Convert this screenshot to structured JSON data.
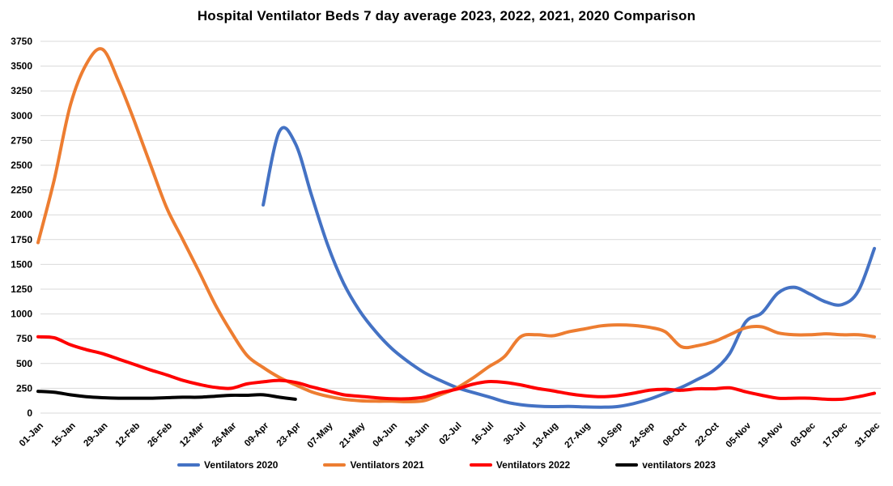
{
  "chart_data": {
    "type": "line",
    "title": "Hospital Ventilator Beds 7 day average 2023, 2022, 2021, 2020 Comparison",
    "xlabel": "",
    "ylabel": "",
    "ylim": [
      0,
      3750
    ],
    "y_ticks": [
      0,
      250,
      500,
      750,
      1000,
      1250,
      1500,
      1750,
      2000,
      2250,
      2500,
      2750,
      3000,
      3250,
      3500,
      3750
    ],
    "grid": true,
    "gridline_color": "#d9d9d9",
    "text_color": "#000000",
    "background_color": "#ffffff",
    "legend_position": "bottom",
    "x_tick_labels": [
      "01-Jan",
      "15-Jan",
      "29-Jan",
      "12-Feb",
      "26-Feb",
      "12-Mar",
      "26-Mar",
      "09-Apr",
      "23-Apr",
      "07-May",
      "21-May",
      "04-Jun",
      "18-Jun",
      "02-Jul",
      "16-Jul",
      "30-Jul",
      "13-Aug",
      "27-Aug",
      "10-Sep",
      "24-Sep",
      "08-Oct",
      "22-Oct",
      "05-Nov",
      "19-Nov",
      "03-Dec",
      "17-Dec",
      "31-Dec"
    ],
    "x": [
      "01-Jan",
      "08-Jan",
      "15-Jan",
      "22-Jan",
      "29-Jan",
      "05-Feb",
      "12-Feb",
      "19-Feb",
      "26-Feb",
      "05-Mar",
      "12-Mar",
      "19-Mar",
      "26-Mar",
      "02-Apr",
      "09-Apr",
      "16-Apr",
      "23-Apr",
      "30-Apr",
      "07-May",
      "14-May",
      "21-May",
      "28-May",
      "04-Jun",
      "11-Jun",
      "18-Jun",
      "25-Jun",
      "02-Jul",
      "09-Jul",
      "16-Jul",
      "23-Jul",
      "30-Jul",
      "06-Aug",
      "13-Aug",
      "20-Aug",
      "27-Aug",
      "03-Sep",
      "10-Sep",
      "17-Sep",
      "24-Sep",
      "01-Oct",
      "08-Oct",
      "15-Oct",
      "22-Oct",
      "29-Oct",
      "05-Nov",
      "12-Nov",
      "19-Nov",
      "26-Nov",
      "03-Dec",
      "10-Dec",
      "17-Dec",
      "24-Dec",
      "31-Dec"
    ],
    "series": [
      {
        "name": "Ventilators 2020",
        "color": "#4472c4",
        "values": [
          null,
          null,
          null,
          null,
          null,
          null,
          null,
          null,
          null,
          null,
          null,
          null,
          null,
          null,
          2100,
          2840,
          2720,
          2200,
          1700,
          1310,
          1030,
          820,
          650,
          520,
          410,
          330,
          260,
          210,
          165,
          115,
          85,
          70,
          65,
          68,
          62,
          60,
          65,
          95,
          140,
          200,
          260,
          340,
          430,
          600,
          920,
          1010,
          1210,
          1270,
          1200,
          1120,
          1095,
          1230,
          1660
        ]
      },
      {
        "name": "Ventilators 2021",
        "color": "#ed7d31",
        "values": [
          1720,
          2350,
          3100,
          3520,
          3670,
          3350,
          2940,
          2500,
          2070,
          1750,
          1430,
          1100,
          820,
          580,
          460,
          360,
          285,
          215,
          170,
          140,
          125,
          120,
          120,
          115,
          125,
          185,
          250,
          350,
          465,
          570,
          770,
          790,
          780,
          820,
          850,
          880,
          890,
          885,
          865,
          820,
          670,
          680,
          720,
          790,
          860,
          870,
          810,
          790,
          790,
          800,
          790,
          790,
          770
        ]
      },
      {
        "name": "Ventilators 2022",
        "color": "#ff0000",
        "values": [
          770,
          760,
          690,
          640,
          600,
          545,
          490,
          435,
          385,
          330,
          290,
          260,
          250,
          295,
          315,
          330,
          310,
          265,
          225,
          185,
          170,
          155,
          145,
          145,
          160,
          205,
          240,
          290,
          318,
          310,
          285,
          250,
          225,
          195,
          175,
          165,
          175,
          200,
          230,
          240,
          230,
          245,
          245,
          255,
          215,
          180,
          150,
          150,
          150,
          140,
          140,
          165,
          200
        ]
      },
      {
        "name": "ventilators 2023",
        "color": "#000000",
        "values": [
          220,
          210,
          185,
          165,
          155,
          150,
          150,
          150,
          155,
          160,
          160,
          170,
          180,
          180,
          185,
          160,
          140,
          null,
          null,
          null,
          null,
          null,
          null,
          null,
          null,
          null,
          null,
          null,
          null,
          null,
          null,
          null,
          null,
          null,
          null,
          null,
          null,
          null,
          null,
          null,
          null,
          null,
          null,
          null,
          null,
          null,
          null,
          null,
          null,
          null,
          null,
          null,
          null
        ]
      }
    ]
  }
}
